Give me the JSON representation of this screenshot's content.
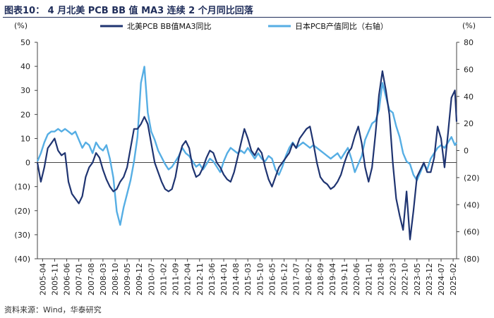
{
  "title": "图表10：  4 月北美 PCB BB 值 MA3 连续 2 个月同比回落",
  "source": "资料来源：Wind，华泰研究",
  "colors": {
    "series1": "#1f3471",
    "series2": "#56aee4",
    "axis": "#444444",
    "zero": "#888888"
  },
  "chart_data": {
    "type": "line",
    "title": "4 月北美 PCB BB 值 MA3 连续 2 个月同比回落",
    "left_unit": "(%)",
    "right_unit": "(%)",
    "x_range": [
      "2005-01",
      "2025-04"
    ],
    "x_tick_labels": [
      "2005-04",
      "2005-11",
      "2006-06",
      "2007-01",
      "2007-08",
      "2008-03",
      "2008-10",
      "2009-05",
      "2009-12",
      "2010-07",
      "2011-02",
      "2011-09",
      "2012-04",
      "2012-11",
      "2013-06",
      "2014-01",
      "2014-08",
      "2015-03",
      "2015-10",
      "2016-05",
      "2016-12",
      "2017-07",
      "2018-02",
      "2018-09",
      "2019-04",
      "2019-11",
      "2020-06",
      "2021-01",
      "2021-08",
      "2022-03",
      "2022-10",
      "2023-05",
      "2023-12",
      "2024-07",
      "2025-02"
    ],
    "y_left": {
      "min": -40,
      "max": 50,
      "step": 10,
      "tick_labels": [
        "50",
        "40",
        "30",
        "20",
        "10",
        "0",
        "(10)",
        "(20)",
        "(30)",
        "(40)"
      ]
    },
    "y_right": {
      "min": -80,
      "max": 80,
      "step": 20,
      "tick_labels": [
        "80",
        "60",
        "40",
        "20",
        "0",
        "(20)",
        "(40)",
        "(60)",
        "(80)"
      ]
    },
    "series": [
      {
        "name": "北美PCB BB值MA3同比",
        "axis": "left",
        "points": [
          [
            "2005-01",
            0
          ],
          [
            "2005-03",
            -8
          ],
          [
            "2005-05",
            -2
          ],
          [
            "2005-07",
            6
          ],
          [
            "2005-09",
            8
          ],
          [
            "2005-11",
            10
          ],
          [
            "2006-01",
            5
          ],
          [
            "2006-03",
            3
          ],
          [
            "2006-05",
            4
          ],
          [
            "2006-07",
            -8
          ],
          [
            "2006-09",
            -13
          ],
          [
            "2006-11",
            -15
          ],
          [
            "2007-01",
            -17
          ],
          [
            "2007-03",
            -14
          ],
          [
            "2007-05",
            -6
          ],
          [
            "2007-07",
            -2
          ],
          [
            "2007-09",
            0
          ],
          [
            "2007-11",
            4
          ],
          [
            "2008-01",
            2
          ],
          [
            "2008-03",
            -3
          ],
          [
            "2008-05",
            -7
          ],
          [
            "2008-07",
            -10
          ],
          [
            "2008-09",
            -12
          ],
          [
            "2008-11",
            -11
          ],
          [
            "2009-01",
            -8
          ],
          [
            "2009-03",
            -6
          ],
          [
            "2009-05",
            -2
          ],
          [
            "2009-07",
            6
          ],
          [
            "2009-09",
            14
          ],
          [
            "2009-11",
            14
          ],
          [
            "2010-01",
            16
          ],
          [
            "2010-03",
            19
          ],
          [
            "2010-05",
            16
          ],
          [
            "2010-07",
            8
          ],
          [
            "2010-09",
            0
          ],
          [
            "2010-11",
            -4
          ],
          [
            "2011-01",
            -8
          ],
          [
            "2011-03",
            -11
          ],
          [
            "2011-05",
            -12
          ],
          [
            "2011-07",
            -11
          ],
          [
            "2011-09",
            -6
          ],
          [
            "2011-11",
            2
          ],
          [
            "2012-01",
            7
          ],
          [
            "2012-03",
            9
          ],
          [
            "2012-05",
            6
          ],
          [
            "2012-07",
            -2
          ],
          [
            "2012-09",
            -6
          ],
          [
            "2012-11",
            -5
          ],
          [
            "2013-01",
            -2
          ],
          [
            "2013-03",
            2
          ],
          [
            "2013-05",
            5
          ],
          [
            "2013-07",
            4
          ],
          [
            "2013-09",
            0
          ],
          [
            "2013-11",
            -2
          ],
          [
            "2014-01",
            -5
          ],
          [
            "2014-03",
            -7
          ],
          [
            "2014-05",
            -8
          ],
          [
            "2014-07",
            -4
          ],
          [
            "2014-09",
            2
          ],
          [
            "2014-11",
            8
          ],
          [
            "2015-01",
            14
          ],
          [
            "2015-03",
            10
          ],
          [
            "2015-05",
            5
          ],
          [
            "2015-07",
            3
          ],
          [
            "2015-09",
            6
          ],
          [
            "2015-11",
            4
          ],
          [
            "2016-01",
            -2
          ],
          [
            "2016-03",
            -7
          ],
          [
            "2016-05",
            -10
          ],
          [
            "2016-07",
            -6
          ],
          [
            "2016-09",
            -2
          ],
          [
            "2016-11",
            0
          ],
          [
            "2017-01",
            2
          ],
          [
            "2017-03",
            4
          ],
          [
            "2017-05",
            8
          ],
          [
            "2017-07",
            6
          ],
          [
            "2017-09",
            10
          ],
          [
            "2017-11",
            12
          ],
          [
            "2018-01",
            14
          ],
          [
            "2018-03",
            15
          ],
          [
            "2018-05",
            8
          ],
          [
            "2018-07",
            0
          ],
          [
            "2018-09",
            -6
          ],
          [
            "2018-11",
            -8
          ],
          [
            "2019-01",
            -9
          ],
          [
            "2019-03",
            -11
          ],
          [
            "2019-05",
            -10
          ],
          [
            "2019-07",
            -8
          ],
          [
            "2019-09",
            -5
          ],
          [
            "2019-11",
            0
          ],
          [
            "2020-01",
            4
          ],
          [
            "2020-03",
            6
          ],
          [
            "2020-05",
            11
          ],
          [
            "2020-07",
            15
          ],
          [
            "2020-09",
            8
          ],
          [
            "2020-11",
            -2
          ],
          [
            "2021-01",
            -8
          ],
          [
            "2021-03",
            -2
          ],
          [
            "2021-05",
            12
          ],
          [
            "2021-07",
            28
          ],
          [
            "2021-09",
            38
          ],
          [
            "2021-11",
            30
          ],
          [
            "2022-01",
            20
          ],
          [
            "2022-03",
            0
          ],
          [
            "2022-05",
            -15
          ],
          [
            "2022-07",
            -22
          ],
          [
            "2022-09",
            -28
          ],
          [
            "2022-11",
            -12
          ],
          [
            "2023-01",
            -32
          ],
          [
            "2023-03",
            -20
          ],
          [
            "2023-05",
            -6
          ],
          [
            "2023-07",
            -3
          ],
          [
            "2023-09",
            0
          ],
          [
            "2023-11",
            -4
          ],
          [
            "2024-01",
            -4
          ],
          [
            "2024-03",
            2
          ],
          [
            "2024-05",
            15
          ],
          [
            "2024-07",
            10
          ],
          [
            "2024-09",
            -2
          ],
          [
            "2024-11",
            12
          ],
          [
            "2025-01",
            27
          ],
          [
            "2025-03",
            30
          ],
          [
            "2025-04",
            17
          ]
        ]
      },
      {
        "name": "日本PCB产值同比（右轴）",
        "axis": "right",
        "points": [
          [
            "2005-01",
            -8
          ],
          [
            "2005-03",
            -2
          ],
          [
            "2005-05",
            6
          ],
          [
            "2005-07",
            12
          ],
          [
            "2005-09",
            14
          ],
          [
            "2005-11",
            14
          ],
          [
            "2006-01",
            16
          ],
          [
            "2006-03",
            14
          ],
          [
            "2006-05",
            16
          ],
          [
            "2006-07",
            14
          ],
          [
            "2006-09",
            12
          ],
          [
            "2006-11",
            14
          ],
          [
            "2007-01",
            8
          ],
          [
            "2007-03",
            2
          ],
          [
            "2007-05",
            6
          ],
          [
            "2007-07",
            4
          ],
          [
            "2007-09",
            -2
          ],
          [
            "2007-11",
            6
          ],
          [
            "2008-01",
            2
          ],
          [
            "2008-03",
            0
          ],
          [
            "2008-05",
            4
          ],
          [
            "2008-07",
            -6
          ],
          [
            "2008-09",
            -20
          ],
          [
            "2008-11",
            -45
          ],
          [
            "2009-01",
            -55
          ],
          [
            "2009-03",
            -42
          ],
          [
            "2009-05",
            -32
          ],
          [
            "2009-07",
            -22
          ],
          [
            "2009-09",
            -8
          ],
          [
            "2009-11",
            10
          ],
          [
            "2010-01",
            50
          ],
          [
            "2010-03",
            62
          ],
          [
            "2010-05",
            28
          ],
          [
            "2010-07",
            14
          ],
          [
            "2010-09",
            8
          ],
          [
            "2010-11",
            0
          ],
          [
            "2011-01",
            -5
          ],
          [
            "2011-03",
            -10
          ],
          [
            "2011-05",
            -14
          ],
          [
            "2011-07",
            -12
          ],
          [
            "2011-09",
            -8
          ],
          [
            "2011-11",
            -4
          ],
          [
            "2012-01",
            2
          ],
          [
            "2012-03",
            -2
          ],
          [
            "2012-05",
            -4
          ],
          [
            "2012-07",
            -8
          ],
          [
            "2012-09",
            -12
          ],
          [
            "2012-11",
            -10
          ],
          [
            "2013-01",
            -14
          ],
          [
            "2013-03",
            -10
          ],
          [
            "2013-05",
            -6
          ],
          [
            "2013-07",
            -8
          ],
          [
            "2013-09",
            -12
          ],
          [
            "2013-11",
            -16
          ],
          [
            "2014-01",
            -8
          ],
          [
            "2014-03",
            -2
          ],
          [
            "2014-05",
            2
          ],
          [
            "2014-07",
            0
          ],
          [
            "2014-09",
            -2
          ],
          [
            "2014-11",
            0
          ],
          [
            "2015-01",
            -2
          ],
          [
            "2015-03",
            2
          ],
          [
            "2015-05",
            -2
          ],
          [
            "2015-07",
            -6
          ],
          [
            "2015-09",
            -2
          ],
          [
            "2015-11",
            -6
          ],
          [
            "2016-01",
            -8
          ],
          [
            "2016-03",
            -4
          ],
          [
            "2016-05",
            -6
          ],
          [
            "2016-07",
            -14
          ],
          [
            "2016-09",
            -18
          ],
          [
            "2016-11",
            -12
          ],
          [
            "2017-01",
            -4
          ],
          [
            "2017-03",
            2
          ],
          [
            "2017-05",
            6
          ],
          [
            "2017-07",
            2
          ],
          [
            "2017-09",
            4
          ],
          [
            "2017-11",
            6
          ],
          [
            "2018-01",
            4
          ],
          [
            "2018-03",
            2
          ],
          [
            "2018-05",
            4
          ],
          [
            "2018-07",
            2
          ],
          [
            "2018-09",
            0
          ],
          [
            "2018-11",
            -2
          ],
          [
            "2019-01",
            -4
          ],
          [
            "2019-03",
            -6
          ],
          [
            "2019-05",
            -4
          ],
          [
            "2019-07",
            -2
          ],
          [
            "2019-09",
            -6
          ],
          [
            "2019-11",
            -2
          ],
          [
            "2020-01",
            2
          ],
          [
            "2020-03",
            -6
          ],
          [
            "2020-05",
            -16
          ],
          [
            "2020-07",
            -10
          ],
          [
            "2020-09",
            -4
          ],
          [
            "2020-11",
            8
          ],
          [
            "2021-01",
            14
          ],
          [
            "2021-03",
            20
          ],
          [
            "2021-05",
            22
          ],
          [
            "2021-07",
            30
          ],
          [
            "2021-09",
            50
          ],
          [
            "2021-11",
            40
          ],
          [
            "2022-01",
            30
          ],
          [
            "2022-03",
            28
          ],
          [
            "2022-05",
            18
          ],
          [
            "2022-07",
            10
          ],
          [
            "2022-09",
            -2
          ],
          [
            "2022-11",
            -8
          ],
          [
            "2023-01",
            -10
          ],
          [
            "2023-03",
            -18
          ],
          [
            "2023-05",
            -22
          ],
          [
            "2023-07",
            -16
          ],
          [
            "2023-09",
            -10
          ],
          [
            "2023-11",
            -14
          ],
          [
            "2024-01",
            -6
          ],
          [
            "2024-03",
            -2
          ],
          [
            "2024-05",
            2
          ],
          [
            "2024-07",
            4
          ],
          [
            "2024-09",
            2
          ],
          [
            "2024-11",
            6
          ],
          [
            "2025-01",
            10
          ],
          [
            "2025-03",
            4
          ],
          [
            "2025-04",
            6
          ]
        ]
      }
    ]
  }
}
